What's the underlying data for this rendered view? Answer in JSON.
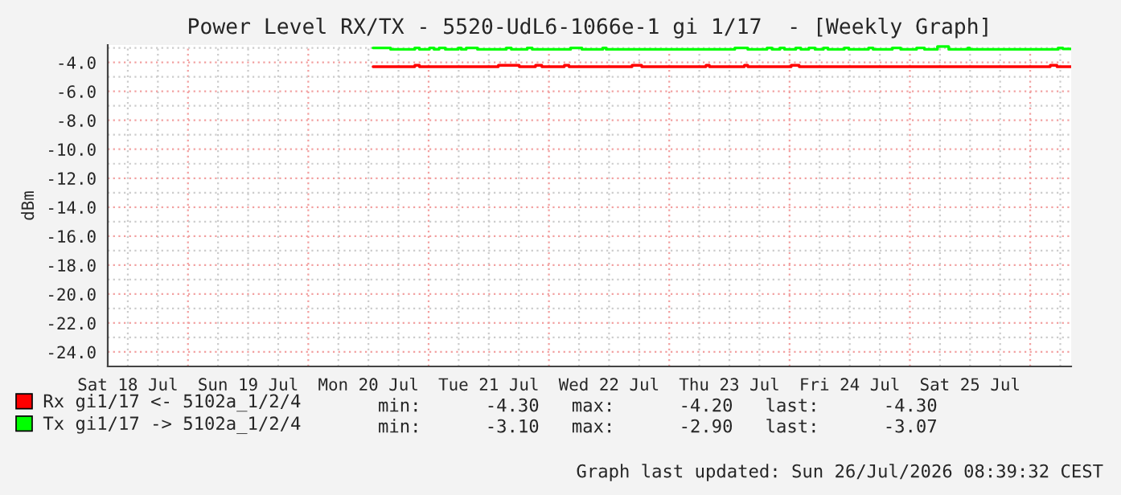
{
  "chart_data": {
    "type": "step",
    "title": "Power Level RX/TX - 5520-UdL6-1066e-1 gi 1/17  - [Weekly Graph]",
    "ylabel": "dBm",
    "xlim": [
      "2026-07-18T08:00",
      "2026-07-26T08:10"
    ],
    "xticks": [
      {
        "value": "2026-07-18T12:00",
        "label": "Sat 18 Jul"
      },
      {
        "value": "2026-07-19T12:00",
        "label": "Sun 19 Jul"
      },
      {
        "value": "2026-07-20T12:00",
        "label": "Mon 20 Jul"
      },
      {
        "value": "2026-07-21T12:00",
        "label": "Tue 21 Jul"
      },
      {
        "value": "2026-07-22T12:00",
        "label": "Wed 22 Jul"
      },
      {
        "value": "2026-07-23T12:00",
        "label": "Thu 23 Jul"
      },
      {
        "value": "2026-07-24T12:00",
        "label": "Fri 24 Jul"
      },
      {
        "value": "2026-07-25T12:00",
        "label": "Sat 25 Jul"
      }
    ],
    "ylim": [
      -25.0,
      -2.8
    ],
    "yticks": [
      {
        "value": -4,
        "label": "-4.0"
      },
      {
        "value": -6,
        "label": "-6.0"
      },
      {
        "value": -8,
        "label": "-8.0"
      },
      {
        "value": -10,
        "label": "-10.0"
      },
      {
        "value": -12,
        "label": "-12.0"
      },
      {
        "value": -14,
        "label": "-14.0"
      },
      {
        "value": -16,
        "label": "-16.0"
      },
      {
        "value": -18,
        "label": "-18.0"
      },
      {
        "value": -20,
        "label": "-20.0"
      },
      {
        "value": -22,
        "label": "-22.0"
      },
      {
        "value": -24,
        "label": "-24.0"
      }
    ],
    "grid": true,
    "legend": "bottom",
    "series": [
      {
        "name": "Rx gi1/17 <- 5102a_1/2/4",
        "color": "#ff0000",
        "x": [
          "2026-07-20T12:55",
          "2026-07-20T21:15",
          "2026-07-20T22:10",
          "2026-07-21T13:55",
          "2026-07-21T18:05",
          "2026-07-21T21:20",
          "2026-07-21T22:35",
          "2026-07-22T03:05",
          "2026-07-22T04:00",
          "2026-07-22T16:35",
          "2026-07-22T18:30",
          "2026-07-23T07:20",
          "2026-07-23T08:00",
          "2026-07-23T15:00",
          "2026-07-23T15:40",
          "2026-07-24T00:20",
          "2026-07-24T01:55",
          "2026-07-26T04:00",
          "2026-07-26T05:20",
          "2026-07-26T08:10"
        ],
        "values": [
          -4.3,
          -4.2,
          -4.3,
          -4.2,
          -4.3,
          -4.2,
          -4.3,
          -4.2,
          -4.3,
          -4.2,
          -4.3,
          -4.2,
          -4.3,
          -4.2,
          -4.3,
          -4.2,
          -4.3,
          -4.2,
          -4.3,
          -4.3
        ]
      },
      {
        "name": "Tx gi1/17 -> 5102a_1/2/4",
        "color": "#00ff00",
        "x": [
          "2026-07-20T12:55",
          "2026-07-20T16:25",
          "2026-07-20T21:15",
          "2026-07-20T22:10",
          "2026-07-21T00:10",
          "2026-07-21T01:05",
          "2026-07-21T02:05",
          "2026-07-21T03:20",
          "2026-07-21T05:55",
          "2026-07-21T06:30",
          "2026-07-21T07:30",
          "2026-07-21T09:45",
          "2026-07-21T15:30",
          "2026-07-21T16:30",
          "2026-07-21T19:40",
          "2026-07-21T20:40",
          "2026-07-22T04:20",
          "2026-07-22T06:35",
          "2026-07-22T10:45",
          "2026-07-22T11:25",
          "2026-07-23T13:05",
          "2026-07-23T15:40",
          "2026-07-23T19:30",
          "2026-07-23T20:30",
          "2026-07-23T22:05",
          "2026-07-23T23:00",
          "2026-07-24T01:15",
          "2026-07-24T02:15",
          "2026-07-24T03:50",
          "2026-07-24T05:05",
          "2026-07-24T06:45",
          "2026-07-24T07:40",
          "2026-07-24T10:55",
          "2026-07-24T11:50",
          "2026-07-24T15:45",
          "2026-07-24T16:40",
          "2026-07-24T20:30",
          "2026-07-24T22:10",
          "2026-07-25T01:20",
          "2026-07-25T02:55",
          "2026-07-25T05:30",
          "2026-07-25T07:45",
          "2026-07-25T11:35",
          "2026-07-25T11:55",
          "2026-07-26T05:35",
          "2026-07-26T06:30",
          "2026-07-26T08:10"
        ],
        "values": [
          -3.0,
          -3.1,
          -3.0,
          -3.1,
          -3.0,
          -3.1,
          -3.0,
          -3.1,
          -3.0,
          -3.1,
          -3.0,
          -3.1,
          -3.0,
          -3.1,
          -3.0,
          -3.1,
          -3.0,
          -3.1,
          -3.0,
          -3.1,
          -3.0,
          -3.1,
          -3.0,
          -3.1,
          -3.0,
          -3.1,
          -3.0,
          -3.1,
          -3.0,
          -3.1,
          -3.0,
          -3.1,
          -3.0,
          -3.1,
          -3.0,
          -3.1,
          -3.0,
          -3.1,
          -3.0,
          -3.1,
          -2.9,
          -3.1,
          -3.0,
          -3.1,
          -3.0,
          -3.07,
          -3.07
        ]
      }
    ],
    "annotations": [
      "min:      -4.30   max:      -4.20   last:      -4.30",
      "min:      -3.10   max:      -2.90   last:      -3.07",
      "Graph last updated: Sun 26/Jul/2026 08:39:32 CEST"
    ]
  }
}
